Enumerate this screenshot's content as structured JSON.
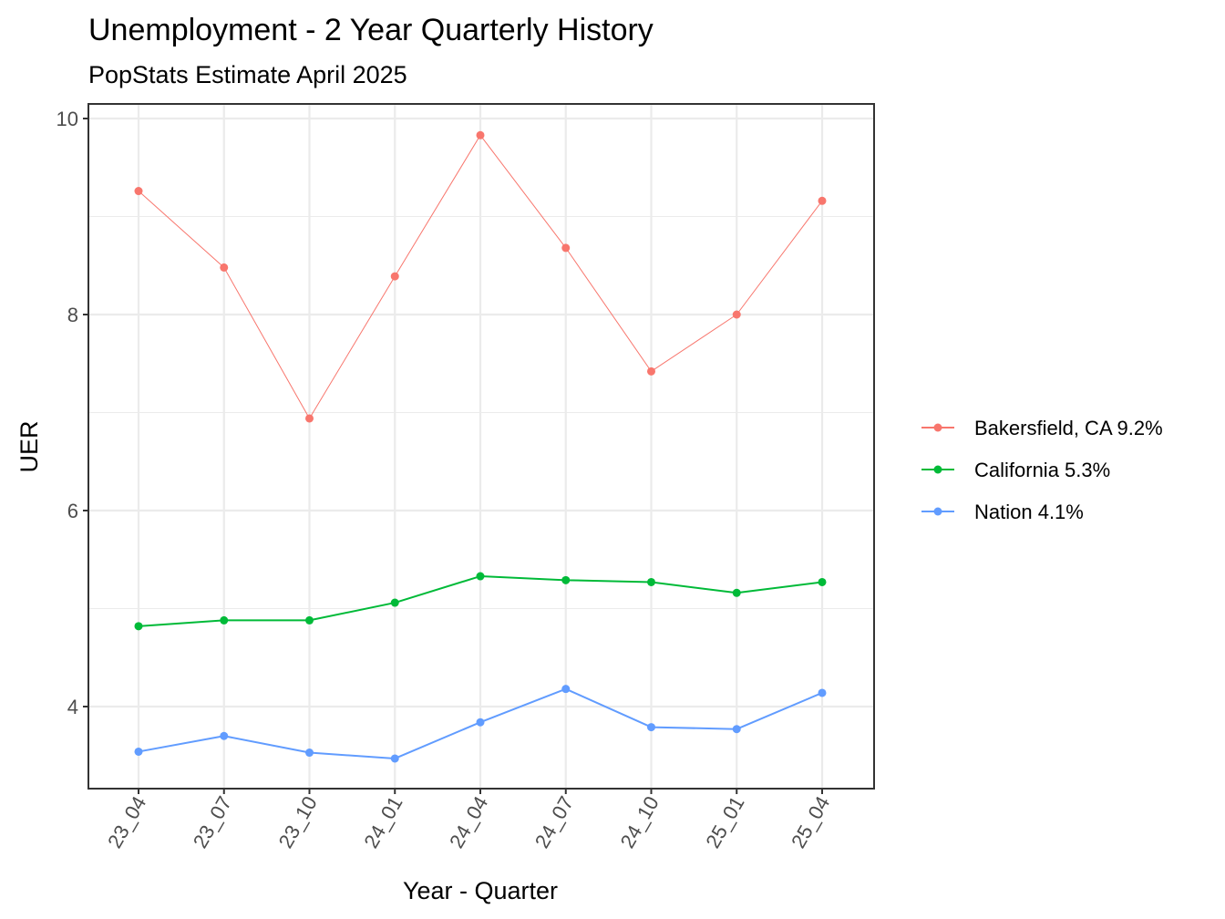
{
  "chart_data": {
    "type": "line",
    "title": "Unemployment - 2 Year Quarterly History",
    "subtitle": "PopStats Estimate April 2025",
    "xlabel": "Year - Quarter",
    "ylabel": "UER",
    "categories": [
      "23_04",
      "23_07",
      "23_10",
      "24_01",
      "24_04",
      "24_07",
      "24_10",
      "25_01",
      "25_04"
    ],
    "y_ticks": [
      4,
      6,
      8,
      10
    ],
    "ylim": [
      3.17,
      10.15
    ],
    "grid": true,
    "legend_position": "right",
    "series": [
      {
        "name": "Bakersfield, CA 9.2%",
        "color": "#F8766D",
        "line_width": 1,
        "values": [
          9.26,
          8.48,
          6.94,
          8.39,
          9.83,
          8.68,
          7.42,
          8.0,
          9.16
        ]
      },
      {
        "name": "California 5.3%",
        "color": "#00BA38",
        "line_width": 2,
        "values": [
          4.82,
          4.88,
          4.88,
          5.06,
          5.33,
          5.29,
          5.27,
          5.16,
          5.27
        ]
      },
      {
        "name": "Nation 4.1%",
        "color": "#619CFF",
        "line_width": 2,
        "values": [
          3.54,
          3.7,
          3.53,
          3.47,
          3.84,
          4.18,
          3.79,
          3.77,
          4.14
        ]
      }
    ]
  }
}
